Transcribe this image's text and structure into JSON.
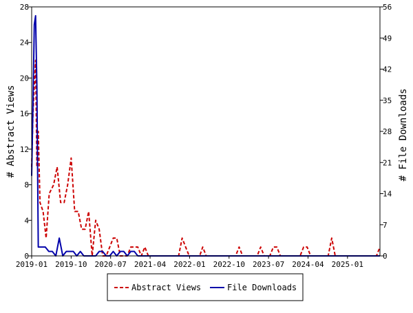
{
  "chart_data": {
    "type": "line",
    "title": "",
    "xlabel": "",
    "ylabel_left": "# Abstract Views",
    "ylabel_right": "# File Downloads",
    "x_ticks": [
      "2019-01",
      "2019-10",
      "2020-07",
      "2021-04",
      "2022-01",
      "2022-10",
      "2023-07",
      "2024-04",
      "2025-01"
    ],
    "x_tick_months": [
      0,
      9,
      18,
      27,
      36,
      45,
      54,
      63,
      72
    ],
    "x_range_months": [
      0,
      79.4
    ],
    "y_left_ticks": [
      0,
      4,
      8,
      12,
      16,
      20,
      24,
      28
    ],
    "y_left_range": [
      0,
      28
    ],
    "y_right_ticks": [
      0,
      7,
      14,
      21,
      28,
      35,
      42,
      49,
      56
    ],
    "y_right_range": [
      0,
      56
    ],
    "grid": false,
    "legend_position": "bottom",
    "series": [
      {
        "name": "Abstract Views",
        "axis": "left",
        "color": "#cc0000",
        "dash": true,
        "points": [
          [
            0,
            10
          ],
          [
            0.3,
            16
          ],
          [
            0.6,
            19
          ],
          [
            0.9,
            22
          ],
          [
            1.2,
            10
          ],
          [
            1.5,
            14
          ],
          [
            1.9,
            6
          ],
          [
            2.6,
            5
          ],
          [
            3.3,
            2
          ],
          [
            4,
            7
          ],
          [
            5,
            8
          ],
          [
            5.8,
            10
          ],
          [
            6.6,
            6
          ],
          [
            7.4,
            6
          ],
          [
            8.2,
            8
          ],
          [
            9,
            11
          ],
          [
            9.8,
            5
          ],
          [
            10.6,
            5
          ],
          [
            11.4,
            3
          ],
          [
            12.2,
            3
          ],
          [
            13,
            5
          ],
          [
            13.8,
            0
          ],
          [
            14.6,
            4
          ],
          [
            15.4,
            3
          ],
          [
            16.2,
            0
          ],
          [
            17,
            0
          ],
          [
            17.8,
            1
          ],
          [
            18.6,
            2
          ],
          [
            19.4,
            2
          ],
          [
            20.2,
            0
          ],
          [
            21,
            0
          ],
          [
            21.8,
            0
          ],
          [
            22.6,
            1
          ],
          [
            23.4,
            1
          ],
          [
            24.2,
            1
          ],
          [
            25,
            0
          ],
          [
            25.8,
            1
          ],
          [
            26.6,
            0
          ],
          [
            33.5,
            0
          ],
          [
            34.3,
            2
          ],
          [
            35.1,
            1
          ],
          [
            35.9,
            0
          ],
          [
            38.3,
            0
          ],
          [
            39,
            1
          ],
          [
            39.8,
            0
          ],
          [
            46.5,
            0
          ],
          [
            47.3,
            1
          ],
          [
            48.1,
            0
          ],
          [
            51.4,
            0
          ],
          [
            52.2,
            1
          ],
          [
            53,
            0
          ],
          [
            54.3,
            0
          ],
          [
            55.1,
            1
          ],
          [
            55.9,
            1
          ],
          [
            56.7,
            0
          ],
          [
            61.2,
            0
          ],
          [
            62,
            1
          ],
          [
            62.8,
            1
          ],
          [
            63.6,
            0
          ],
          [
            67.6,
            0
          ],
          [
            68.4,
            2
          ],
          [
            69.2,
            0
          ],
          [
            78.6,
            0
          ],
          [
            79.4,
            1
          ]
        ]
      },
      {
        "name": "File Downloads",
        "axis": "right",
        "color": "#0000aa",
        "dash": false,
        "points": [
          [
            0,
            18
          ],
          [
            0.3,
            34
          ],
          [
            0.6,
            52
          ],
          [
            0.9,
            54
          ],
          [
            1.2,
            38
          ],
          [
            1.5,
            2
          ],
          [
            2.3,
            2
          ],
          [
            3.1,
            2
          ],
          [
            3.9,
            1
          ],
          [
            4.7,
            1
          ],
          [
            5.5,
            0
          ],
          [
            6.3,
            4
          ],
          [
            7.1,
            0
          ],
          [
            7.9,
            1
          ],
          [
            8.7,
            1
          ],
          [
            9.5,
            1
          ],
          [
            10.3,
            0
          ],
          [
            11.1,
            1
          ],
          [
            11.9,
            0
          ],
          [
            14.6,
            0
          ],
          [
            15.4,
            1
          ],
          [
            16.2,
            1
          ],
          [
            17,
            0
          ],
          [
            17.8,
            0
          ],
          [
            18.6,
            1
          ],
          [
            19.4,
            0
          ],
          [
            20.2,
            1
          ],
          [
            21,
            1
          ],
          [
            21.8,
            0
          ],
          [
            22.6,
            1
          ],
          [
            23.4,
            1
          ],
          [
            24.2,
            0
          ],
          [
            79.4,
            0
          ]
        ]
      }
    ]
  }
}
